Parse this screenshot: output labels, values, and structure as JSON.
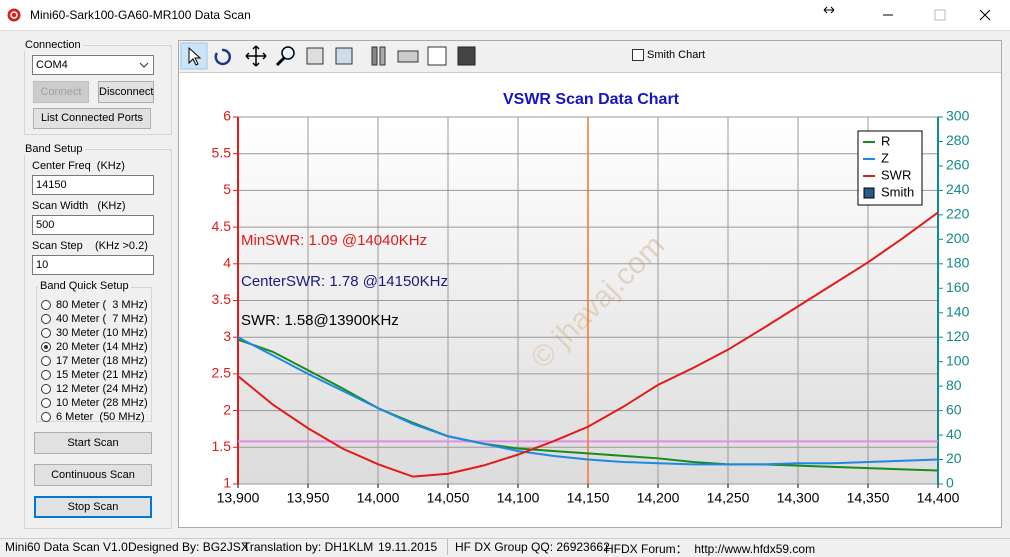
{
  "window": {
    "title": "Mini60-Sark100-GA60-MR100 Data Scan"
  },
  "connection": {
    "label": "Connection",
    "port": "COM4",
    "connect": "Connect",
    "disconnect": "Disconnect",
    "list_ports": "List Connected Ports"
  },
  "band_setup": {
    "label": "Band Setup",
    "center_label": "Center Freq  (KHz)",
    "center_value": "14150",
    "width_label": "Scan Width   (KHz)",
    "width_value": "500",
    "step_label": "Scan Step",
    "step_hint": "(KHz >0.2)",
    "step_value": "10"
  },
  "quick_setup": {
    "label": "Band Quick Setup",
    "options": [
      "80 Meter (  3 MHz)",
      "40 Meter (  7 MHz)",
      "30 Meter (10 MHz)",
      "20 Meter (14 MHz)",
      "17 Meter (18 MHz)",
      "15 Meter (21 MHz)",
      "12 Meter (24 MHz)",
      "10 Meter (28 MHz)",
      "6 Meter  (50 MHz)"
    ],
    "selected": 3
  },
  "buttons": {
    "start": "Start Scan",
    "continuous": "Continuous Scan",
    "stop": "Stop Scan"
  },
  "toolbar": {
    "smith_chart": "Smith Chart"
  },
  "status": [
    "Mini60 Data Scan V1.0",
    "Designed By: BG2JSX",
    "Translation by: DH1KLM",
    "19.11.2015",
    "HF DX Group QQ: 26923662",
    "HFDX Forum：  http://www.hfdx59.com"
  ],
  "chart_data": {
    "type": "line",
    "title": "VSWR Scan Data Chart",
    "watermark": "© jhavaj.com",
    "x": [
      13900,
      13925,
      13950,
      13975,
      14000,
      14025,
      14050,
      14075,
      14100,
      14125,
      14150,
      14175,
      14200,
      14225,
      14250,
      14275,
      14300,
      14325,
      14350,
      14375,
      14400
    ],
    "series": [
      {
        "name": "R",
        "color": "#1a8a1a",
        "axis": "y2",
        "values": [
          118,
          108,
          93,
          78,
          62,
          50,
          39,
          33,
          29,
          27,
          25,
          23,
          21,
          18,
          16,
          16,
          15,
          14,
          13,
          12,
          11
        ]
      },
      {
        "name": "Z",
        "color": "#1e88e5",
        "axis": "y2",
        "values": [
          120,
          105,
          90,
          76,
          62,
          49,
          39,
          33,
          27,
          23,
          20,
          18,
          17,
          16,
          16,
          16,
          17,
          17,
          18,
          19,
          20
        ]
      },
      {
        "name": "SWR",
        "color": "#e31a1a",
        "values": [
          2.47,
          2.08,
          1.76,
          1.48,
          1.27,
          1.1,
          1.14,
          1.25,
          1.4,
          1.58,
          1.78,
          2.05,
          2.35,
          2.58,
          2.83,
          3.12,
          3.42,
          3.72,
          4.02,
          4.35,
          4.7
        ]
      }
    ],
    "smith_legend": "Smith",
    "xlim": [
      13900,
      14400
    ],
    "xticks": [
      {
        "value": 13900,
        "label": "13,900"
      },
      {
        "value": 13950,
        "label": "13,950"
      },
      {
        "value": 14000,
        "label": "14,000"
      },
      {
        "value": 14050,
        "label": "14,050"
      },
      {
        "value": 14100,
        "label": "14,100"
      },
      {
        "value": 14150,
        "label": "14,150"
      },
      {
        "value": 14200,
        "label": "14,200"
      },
      {
        "value": 14250,
        "label": "14,250"
      },
      {
        "value": 14300,
        "label": "14,300"
      },
      {
        "value": 14350,
        "label": "14,350"
      },
      {
        "value": 14400,
        "label": "14,400"
      }
    ],
    "ylim": [
      1,
      6
    ],
    "yticks": [
      1,
      1.5,
      2,
      2.5,
      3,
      3.5,
      4,
      4.5,
      5,
      5.5,
      6
    ],
    "y2lim": [
      0,
      300
    ],
    "y2ticks": [
      0,
      20,
      40,
      60,
      80,
      100,
      120,
      140,
      160,
      180,
      200,
      220,
      240,
      260,
      280,
      300
    ],
    "grid": true,
    "legend": "top-right",
    "cursor_x": 14150,
    "reference_y": 1.58,
    "annotations": [
      {
        "text": "MinSWR: 1.09 @14040KHz",
        "color": "#e31a1a"
      },
      {
        "text": "CenterSWR: 1.78 @14150KHz",
        "color": "#1a1a80"
      },
      {
        "text": "SWR: 1.58@13900KHz",
        "color": "#000000"
      }
    ]
  }
}
